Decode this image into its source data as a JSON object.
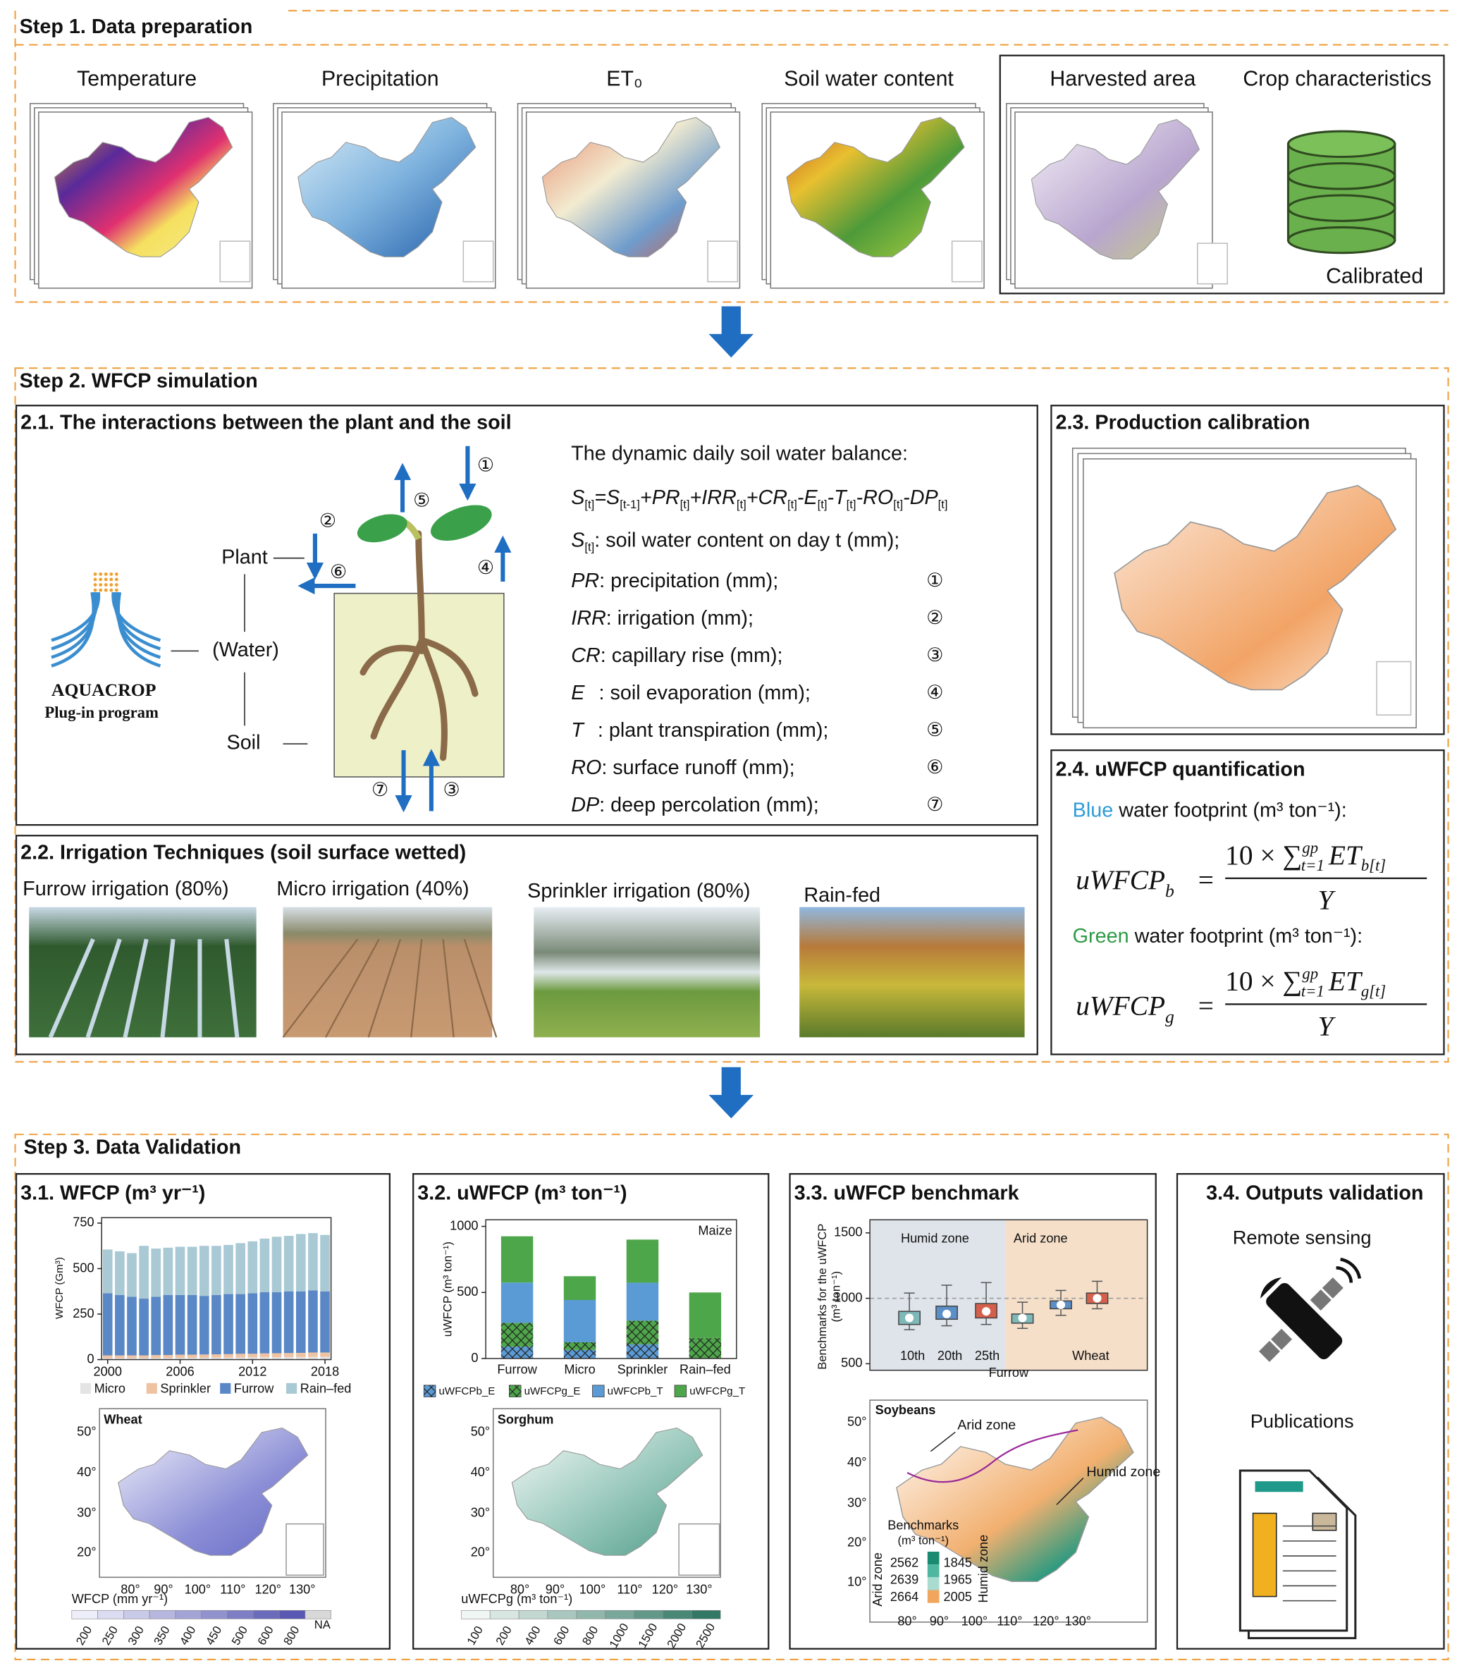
{
  "step1": {
    "title": "Step 1. Data preparation",
    "inputs": [
      "Temperature",
      "Precipitation",
      "ET₀",
      "Soil water content",
      "Harvested area",
      "Crop characteristics"
    ],
    "calibrated": "Calibrated"
  },
  "step2": {
    "title": "Step 2. WFCP simulation",
    "interactions": {
      "title": "2.1. The interactions between the plant and the soil",
      "plant": "Plant",
      "water": "(Water)",
      "soil": "Soil",
      "logo": "AQUACROP",
      "logo_subtitle": "Plug-in program",
      "balance_title": "The dynamic daily soil water balance:",
      "equation": [
        {
          "main": "S",
          "sub": "[t]"
        },
        {
          "main": "=S",
          "sub": "[t-1]"
        },
        {
          "main": "+PR",
          "sub": "[t]"
        },
        {
          "main": "+IRR",
          "sub": "[t]"
        },
        {
          "main": "+CR",
          "sub": "[t]"
        },
        {
          "main": "-E",
          "sub": "[t]"
        },
        {
          "main": "-T",
          "sub": "[t]"
        },
        {
          "main": "-RO",
          "sub": "[t]"
        },
        {
          "main": "-DP",
          "sub": "[t]"
        }
      ],
      "terms": [
        {
          "name": "S",
          "sub": "[t]",
          "desc": ": soil water content on day t (mm);"
        },
        {
          "name": "PR",
          "desc": ": precipitation (mm);",
          "marker": "①"
        },
        {
          "name": "IRR",
          "desc": ": irrigation (mm);",
          "marker": "②"
        },
        {
          "name": "CR",
          "desc": ": capillary rise (mm);",
          "marker": "③"
        },
        {
          "name": "E",
          "desc": "   : soil evaporation (mm);",
          "marker": "④"
        },
        {
          "name": "T",
          "desc": "   : plant transpiration (mm);",
          "marker": "⑤"
        },
        {
          "name": "RO",
          "desc": ": surface runoff (mm);",
          "marker": "⑥"
        },
        {
          "name": "DP",
          "desc": ": deep percolation (mm);",
          "marker": "⑦"
        }
      ],
      "diagram_markers": [
        "①",
        "②",
        "③",
        "④",
        "⑤",
        "⑥",
        "⑦"
      ]
    },
    "irrigation": {
      "title": "2.2. Irrigation Techniques (soil surface wetted)",
      "techniques": [
        "Furrow irrigation (80%)",
        "Micro irrigation (40%)",
        "Sprinkler irrigation (80%)",
        "Rain-fed"
      ]
    },
    "calibration": {
      "title": "2.3. Production calibration"
    },
    "quantification": {
      "title": "2.4. uWFCP quantification",
      "footprints": [
        {
          "color_word": "Blue",
          "color": "#2f9bd6",
          "text": " water footprint (m³ ton⁻¹):",
          "symbol": "uWFCP",
          "symbol_sub": "b",
          "equals": "=",
          "numerator": "10 × ∑",
          "sum_sub": "t=1",
          "sum_sup": "gp",
          "term": "ET",
          "term_sub": "b[t]",
          "denominator": "Y"
        },
        {
          "color_word": "Green",
          "color": "#2f9a45",
          "text": " water footprint (m³ ton⁻¹):",
          "symbol": "uWFCP",
          "symbol_sub": "g",
          "equals": "=",
          "numerator": "10 × ∑",
          "sum_sub": "t=1",
          "sum_sup": "gp",
          "term": "ET",
          "term_sub": "g[t]",
          "denominator": "Y"
        }
      ]
    }
  },
  "step3": {
    "title": "Step 3. Data Validation",
    "wfcp": {
      "title": "3.1. WFCP (m³ yr⁻¹)",
      "chart": {
        "type": "bar",
        "stacked": true,
        "ylabel": "WFCP (Gm³)",
        "x": [
          2000,
          2001,
          2002,
          2003,
          2004,
          2005,
          2006,
          2007,
          2008,
          2009,
          2010,
          2011,
          2012,
          2013,
          2014,
          2015,
          2016,
          2017,
          2018
        ],
        "xlim": [
          1999.5,
          2018.5
        ],
        "xticks": [
          2000,
          2006,
          2012,
          2018
        ],
        "ylim": [
          0,
          780
        ],
        "yticks": [
          0,
          250,
          500,
          750
        ],
        "series": [
          {
            "name": "Micro",
            "color": "#e4e4e4",
            "values": [
              8,
              8,
              8,
              8,
              9,
              9,
              10,
              10,
              10,
              11,
              11,
              12,
              12,
              13,
              13,
              14,
              14,
              15,
              15
            ]
          },
          {
            "name": "Sprinkler",
            "color": "#efc3a2",
            "values": [
              15,
              15,
              15,
              15,
              16,
              16,
              17,
              17,
              18,
              18,
              19,
              20,
              20,
              21,
              22,
              22,
              23,
              24,
              24
            ]
          },
          {
            "name": "Furrow",
            "color": "#5a87c6",
            "values": [
              342,
              332,
              322,
              312,
              320,
              330,
              328,
              328,
              322,
              326,
              330,
              328,
              333,
              336,
              335,
              339,
              338,
              341,
              336
            ]
          },
          {
            "name": "Rain–fed",
            "color": "#a9c9d4",
            "values": [
              240,
              240,
              240,
              290,
              265,
              260,
              265,
              265,
              275,
              270,
              270,
              280,
              285,
              295,
              305,
              305,
              315,
              315,
              310
            ]
          }
        ]
      },
      "map": {
        "label": "Wheat",
        "lat_ticks": [
          "50°",
          "40°",
          "30°",
          "20°"
        ],
        "lon_ticks": [
          "80°",
          "90°",
          "100°",
          "110°",
          "120°",
          "130°"
        ],
        "colorbar_title": "WFCP (mm yr⁻¹)",
        "colorbar_labels": [
          200,
          250,
          300,
          350,
          400,
          450,
          500,
          600,
          800,
          "NA"
        ]
      }
    },
    "uwfcp": {
      "title": "3.2. uWFCP (m³ ton⁻¹)",
      "chart": {
        "type": "bar",
        "stacked": true,
        "label": "Maize",
        "ylabel": "uWFCP (m³ ton⁻¹)",
        "categories": [
          "Furrow",
          "Micro",
          "Sprinkler",
          "Rain–fed"
        ],
        "ylim": [
          0,
          1050
        ],
        "yticks": [
          0,
          500,
          1000
        ],
        "series": [
          {
            "name": "uWFCPb_E",
            "color": "#5b9bd5",
            "hatch": true,
            "values": [
              90,
              65,
              107,
              0
            ]
          },
          {
            "name": "uWFCPg_E",
            "color": "#4ea64a",
            "hatch": true,
            "values": [
              180,
              58,
              180,
              156
            ]
          },
          {
            "name": "uWFCPb_T",
            "color": "#5b9bd5",
            "values": [
              305,
              320,
              287,
              0
            ]
          },
          {
            "name": "uWFCPg_T",
            "color": "#4ea64a",
            "values": [
              350,
              180,
              326,
              344
            ]
          }
        ]
      },
      "map": {
        "label": "Sorghum",
        "lat_ticks": [
          "50°",
          "40°",
          "30°",
          "20°"
        ],
        "lon_ticks": [
          "80°",
          "90°",
          "100°",
          "110°",
          "120°",
          "130°"
        ],
        "colorbar_title": "uWFCPg (m³ ton⁻¹)",
        "colorbar_labels": [
          100,
          200,
          400,
          600,
          800,
          1000,
          1500,
          2000,
          2500
        ]
      }
    },
    "benchmark": {
      "title": "3.3. uWFCP benchmark",
      "chart": {
        "type": "box",
        "ylabel": [
          "Benchmarks for the uWFCP",
          "(m³ ton⁻¹)"
        ],
        "ylim": [
          450,
          1600
        ],
        "yticks": [
          500,
          1000,
          1500
        ],
        "reference_line": 1000,
        "zones": [
          "Humid zone",
          "Arid zone"
        ],
        "percentiles": [
          "10th",
          "20th",
          "25th"
        ],
        "technique": "Furrow",
        "crop": "Wheat",
        "colors": [
          "#7fb8b8",
          "#5b8fc8",
          "#d4604b"
        ],
        "boxes": [
          {
            "min": 760,
            "q1": 800,
            "median": 850,
            "q3": 900,
            "max": 1040
          },
          {
            "min": 790,
            "q1": 840,
            "median": 880,
            "q3": 940,
            "max": 1100
          },
          {
            "min": 800,
            "q1": 850,
            "median": 900,
            "q3": 960,
            "max": 1120
          },
          {
            "min": 770,
            "q1": 810,
            "median": 850,
            "q3": 880,
            "max": 970
          },
          {
            "min": 870,
            "q1": 920,
            "median": 950,
            "q3": 980,
            "max": 1060
          },
          {
            "min": 920,
            "q1": 960,
            "median": 1000,
            "q3": 1040,
            "max": 1130
          }
        ]
      },
      "map": {
        "label": "Soybeans",
        "arid_label": "Arid zone",
        "humid_label": "Humid zone",
        "legend_title": [
          "Benchmarks",
          "(m³ ton⁻¹)"
        ],
        "arid_values": [
          2562,
          2639,
          2664
        ],
        "humid_values": [
          1845,
          1965,
          2005
        ],
        "legend_arid": "Arid zone",
        "legend_humid": "Humid zone",
        "lat_ticks": [
          "50°",
          "40°",
          "30°",
          "20°",
          "10°"
        ],
        "lon_ticks": [
          "80°",
          "90°",
          "100°",
          "110°",
          "120°",
          "130°"
        ]
      }
    },
    "outputs": {
      "title": "3.4. Outputs validation",
      "items": [
        "Remote sensing",
        "Publications"
      ]
    }
  }
}
